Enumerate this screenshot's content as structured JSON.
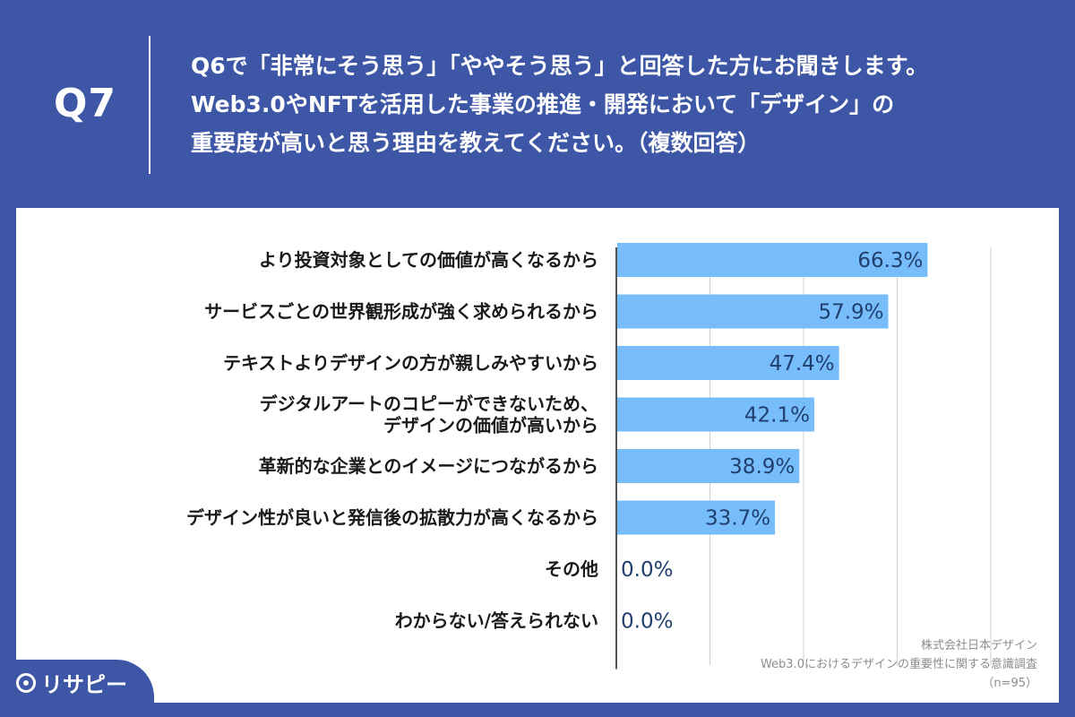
{
  "header": {
    "question_label": "Q7",
    "question_lines": [
      "Q6で「非常にそう思う」「ややそう思う」と回答した方にお聞きします。",
      "Web3.0やNFTを活用した事業の推進・開発において「デザイン」の",
      "重要度が高いと思う理由を教えてください。（複数回答）"
    ]
  },
  "chart_data": {
    "type": "bar",
    "orientation": "horizontal",
    "categories": [
      [
        "より投資対象としての価値が高くなるから"
      ],
      [
        "サービスごとの世界観形成が強く求められるから"
      ],
      [
        "テキストよりデザインの方が親しみやすいから"
      ],
      [
        "デジタルアートのコピーができないため、",
        "デザインの価値が高いから"
      ],
      [
        "革新的な企業とのイメージにつながるから"
      ],
      [
        "デザイン性が良いと発信後の拡散力が高くなるから"
      ],
      [
        "その他"
      ],
      [
        "わからない/答えられない"
      ]
    ],
    "values": [
      66.3,
      57.9,
      47.4,
      42.1,
      38.9,
      33.7,
      0.0,
      0.0
    ],
    "value_labels": [
      "66.3%",
      "57.9%",
      "47.4%",
      "42.1%",
      "38.9%",
      "33.7%",
      "0.0%",
      "0.0%"
    ],
    "xlim": [
      0,
      80
    ],
    "grid_interval": 20,
    "grid": true,
    "bar_color": "#78bdfb",
    "label_color": "#1f3f6e"
  },
  "source": {
    "line1": "株式会社日本デザイン",
    "line2": "Web3.0におけるデザインの重要性に関する意識調査",
    "line3": "（n=95）"
  },
  "logo": {
    "text": "リサピー"
  },
  "colors": {
    "background": "#3d56a6",
    "panel": "#ffffff"
  }
}
